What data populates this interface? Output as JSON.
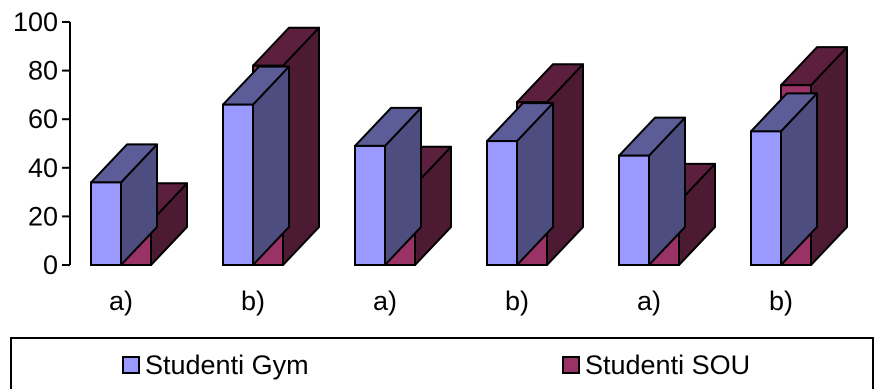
{
  "chart_data": {
    "type": "bar",
    "style": "3d-clustered",
    "categories": [
      "a)",
      "b)",
      "a)",
      "b)",
      "a)",
      "b)"
    ],
    "series": [
      {
        "name": "Studenti Gym",
        "values": [
          34,
          66,
          49,
          51,
          45,
          55
        ],
        "color": "#9999ff"
      },
      {
        "name": "Studenti SOU",
        "values": [
          18,
          82,
          33,
          67,
          26,
          74
        ],
        "color": "#993366"
      }
    ],
    "ylim": [
      0,
      100
    ],
    "yticks": [
      "0",
      "20",
      "40",
      "60",
      "80",
      "100"
    ],
    "grid": false,
    "legend_position": "bottom"
  },
  "legend": {
    "items": [
      {
        "label": "Studenti Gym",
        "color": "#9999ff"
      },
      {
        "label": "Studenti SOU",
        "color": "#993366"
      }
    ]
  }
}
